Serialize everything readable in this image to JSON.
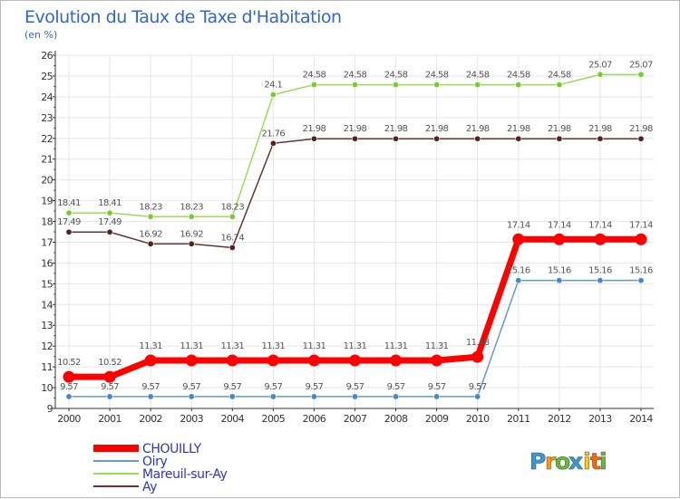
{
  "colors": {
    "axis": "#333333",
    "grid": "#e6e6e6",
    "axis_tick_red": "#cc3333",
    "title": "#3366cc",
    "data_label": "#555555",
    "legend_text": "#3333bb"
  },
  "chart_data": {
    "type": "line",
    "title": "Evolution du Taux de Taxe d'Habitation",
    "subtitle": "(en %)",
    "xlabel": "",
    "ylabel": "",
    "ylim": [
      9,
      26
    ],
    "yticks": [
      9,
      10,
      11,
      12,
      13,
      14,
      15,
      16,
      17,
      18,
      19,
      20,
      21,
      22,
      23,
      24,
      25,
      26
    ],
    "x": [
      2000,
      2001,
      2002,
      2003,
      2004,
      2005,
      2006,
      2007,
      2008,
      2009,
      2010,
      2011,
      2012,
      2013,
      2014
    ],
    "grid": true,
    "legend_position": "bottom-left",
    "series": [
      {
        "name": "Mareuil-sur-Ay",
        "color": "#99dd55",
        "marker_color": "#77cc33",
        "line_width": 1.5,
        "values": [
          18.41,
          18.41,
          18.23,
          18.23,
          18.23,
          24.1,
          24.58,
          24.58,
          24.58,
          24.58,
          24.58,
          24.58,
          24.58,
          25.07,
          25.07
        ],
        "labels": [
          "18.41",
          "18.41",
          "18.23",
          "18.23",
          "18.23",
          "24.1",
          "24.58",
          "24.58",
          "24.58",
          "24.58",
          "24.58",
          "24.58",
          "24.58",
          "25.07",
          "25.07"
        ]
      },
      {
        "name": "Ay",
        "color": "#663333",
        "marker_color": "#552222",
        "line_width": 1.5,
        "values": [
          17.49,
          17.49,
          16.92,
          16.92,
          16.74,
          21.76,
          21.98,
          21.98,
          21.98,
          21.98,
          21.98,
          21.98,
          21.98,
          21.98,
          21.98
        ],
        "labels": [
          "17.49",
          "17.49",
          "16.92",
          "16.92",
          "16.74",
          "21.76",
          "21.98",
          "21.98",
          "21.98",
          "21.98",
          "21.98",
          "21.98",
          "21.98",
          "21.98",
          "21.98"
        ]
      },
      {
        "name": "Oiry",
        "color": "#6699cc",
        "marker_color": "#4488cc",
        "line_width": 1.5,
        "values": [
          9.57,
          9.57,
          9.57,
          9.57,
          9.57,
          9.57,
          9.57,
          9.57,
          9.57,
          9.57,
          9.57,
          15.16,
          15.16,
          15.16,
          15.16
        ],
        "labels": [
          "9.57",
          "9.57",
          "9.57",
          "9.57",
          "9.57",
          "9.57",
          "9.57",
          "9.57",
          "9.57",
          "9.57",
          "9.57",
          "15.16",
          "15.16",
          "15.16",
          "15.16"
        ]
      },
      {
        "name": "CHOUILLY",
        "color": "#ff0000",
        "marker_color": "#ff0000",
        "line_width": 7,
        "values": [
          10.52,
          10.52,
          11.31,
          11.31,
          11.31,
          11.31,
          11.31,
          11.31,
          11.31,
          11.31,
          11.48,
          17.14,
          17.14,
          17.14,
          17.14
        ],
        "labels": [
          "10.52",
          "10.52",
          "11.31",
          "11.31",
          "11.31",
          "11.31",
          "11.31",
          "11.31",
          "11.31",
          "11.31",
          "11.48",
          "17.14",
          "17.14",
          "17.14",
          "17.14"
        ]
      }
    ],
    "legend_order": [
      "CHOUILLY",
      "Oiry",
      "Mareuil-sur-Ay",
      "Ay"
    ]
  },
  "logo": {
    "letters": [
      "P",
      "r",
      "o",
      "x",
      "i",
      "t",
      "i"
    ],
    "colors": [
      "#3399dd",
      "#ff9900",
      "#66bb33",
      "#3399dd",
      "#ffcc00",
      "#ff6600",
      "#66bb33"
    ]
  }
}
